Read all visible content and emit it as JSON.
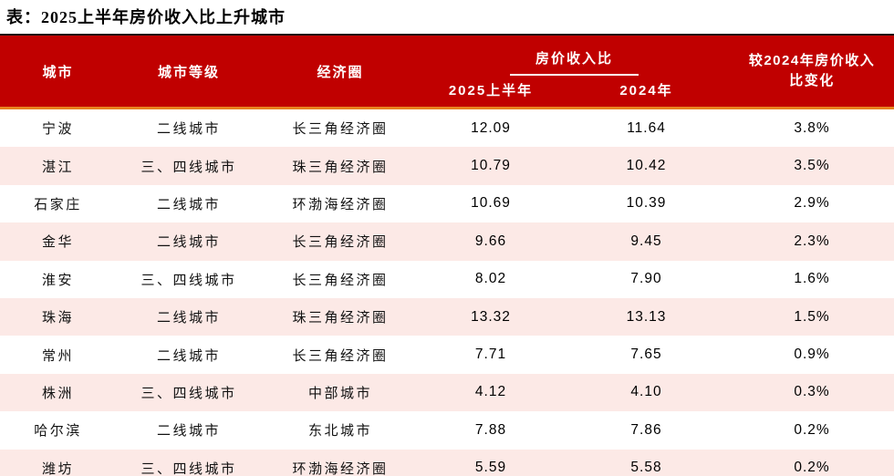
{
  "title": "表：2025上半年房价收入比上升城市",
  "colors": {
    "header_bg": "#C00000",
    "header_text": "#FFFFFF",
    "top_rule": "#141414",
    "accent_rule": "#E8821F",
    "stripe_row": "#FCE9E6",
    "body_text": "#121212"
  },
  "table": {
    "columns": {
      "city": "城市",
      "tier": "城市等级",
      "region": "经济圈",
      "group": "房价收入比",
      "sub_2025": "2025上半年",
      "sub_2024": "2024年",
      "change_line1": "较2024年房价收入",
      "change_line2": "比变化"
    },
    "rows": [
      {
        "city": "宁波",
        "tier": "二线城市",
        "region": "长三角经济圈",
        "h1_2025": "12.09",
        "y2024": "11.64",
        "change": "3.8%"
      },
      {
        "city": "湛江",
        "tier": "三、四线城市",
        "region": "珠三角经济圈",
        "h1_2025": "10.79",
        "y2024": "10.42",
        "change": "3.5%"
      },
      {
        "city": "石家庄",
        "tier": "二线城市",
        "region": "环渤海经济圈",
        "h1_2025": "10.69",
        "y2024": "10.39",
        "change": "2.9%"
      },
      {
        "city": "金华",
        "tier": "二线城市",
        "region": "长三角经济圈",
        "h1_2025": "9.66",
        "y2024": "9.45",
        "change": "2.3%"
      },
      {
        "city": "淮安",
        "tier": "三、四线城市",
        "region": "长三角经济圈",
        "h1_2025": "8.02",
        "y2024": "7.90",
        "change": "1.6%"
      },
      {
        "city": "珠海",
        "tier": "二线城市",
        "region": "珠三角经济圈",
        "h1_2025": "13.32",
        "y2024": "13.13",
        "change": "1.5%"
      },
      {
        "city": "常州",
        "tier": "二线城市",
        "region": "长三角经济圈",
        "h1_2025": "7.71",
        "y2024": "7.65",
        "change": "0.9%"
      },
      {
        "city": "株洲",
        "tier": "三、四线城市",
        "region": "中部城市",
        "h1_2025": "4.12",
        "y2024": "4.10",
        "change": "0.3%"
      },
      {
        "city": "哈尔滨",
        "tier": "二线城市",
        "region": "东北城市",
        "h1_2025": "7.88",
        "y2024": "7.86",
        "change": "0.2%"
      },
      {
        "city": "潍坊",
        "tier": "三、四线城市",
        "region": "环渤海经济圈",
        "h1_2025": "5.59",
        "y2024": "5.58",
        "change": "0.2%"
      }
    ]
  },
  "chart_data": {
    "type": "table",
    "title": "表：2025上半年房价收入比上升城市",
    "columns": [
      "城市",
      "城市等级",
      "经济圈",
      "房价收入比 2025上半年",
      "房价收入比 2024年",
      "较2024年房价收入比变化"
    ],
    "rows": [
      [
        "宁波",
        "二线城市",
        "长三角经济圈",
        12.09,
        11.64,
        "3.8%"
      ],
      [
        "湛江",
        "三、四线城市",
        "珠三角经济圈",
        10.79,
        10.42,
        "3.5%"
      ],
      [
        "石家庄",
        "二线城市",
        "环渤海经济圈",
        10.69,
        10.39,
        "2.9%"
      ],
      [
        "金华",
        "二线城市",
        "长三角经济圈",
        9.66,
        9.45,
        "2.3%"
      ],
      [
        "淮安",
        "三、四线城市",
        "长三角经济圈",
        8.02,
        7.9,
        "1.6%"
      ],
      [
        "珠海",
        "二线城市",
        "珠三角经济圈",
        13.32,
        13.13,
        "1.5%"
      ],
      [
        "常州",
        "二线城市",
        "长三角经济圈",
        7.71,
        7.65,
        "0.9%"
      ],
      [
        "株洲",
        "三、四线城市",
        "中部城市",
        4.12,
        4.1,
        "0.3%"
      ],
      [
        "哈尔滨",
        "二线城市",
        "东北城市",
        7.88,
        7.86,
        "0.2%"
      ],
      [
        "潍坊",
        "三、四线城市",
        "环渤海经济圈",
        5.59,
        5.58,
        "0.2%"
      ]
    ]
  }
}
